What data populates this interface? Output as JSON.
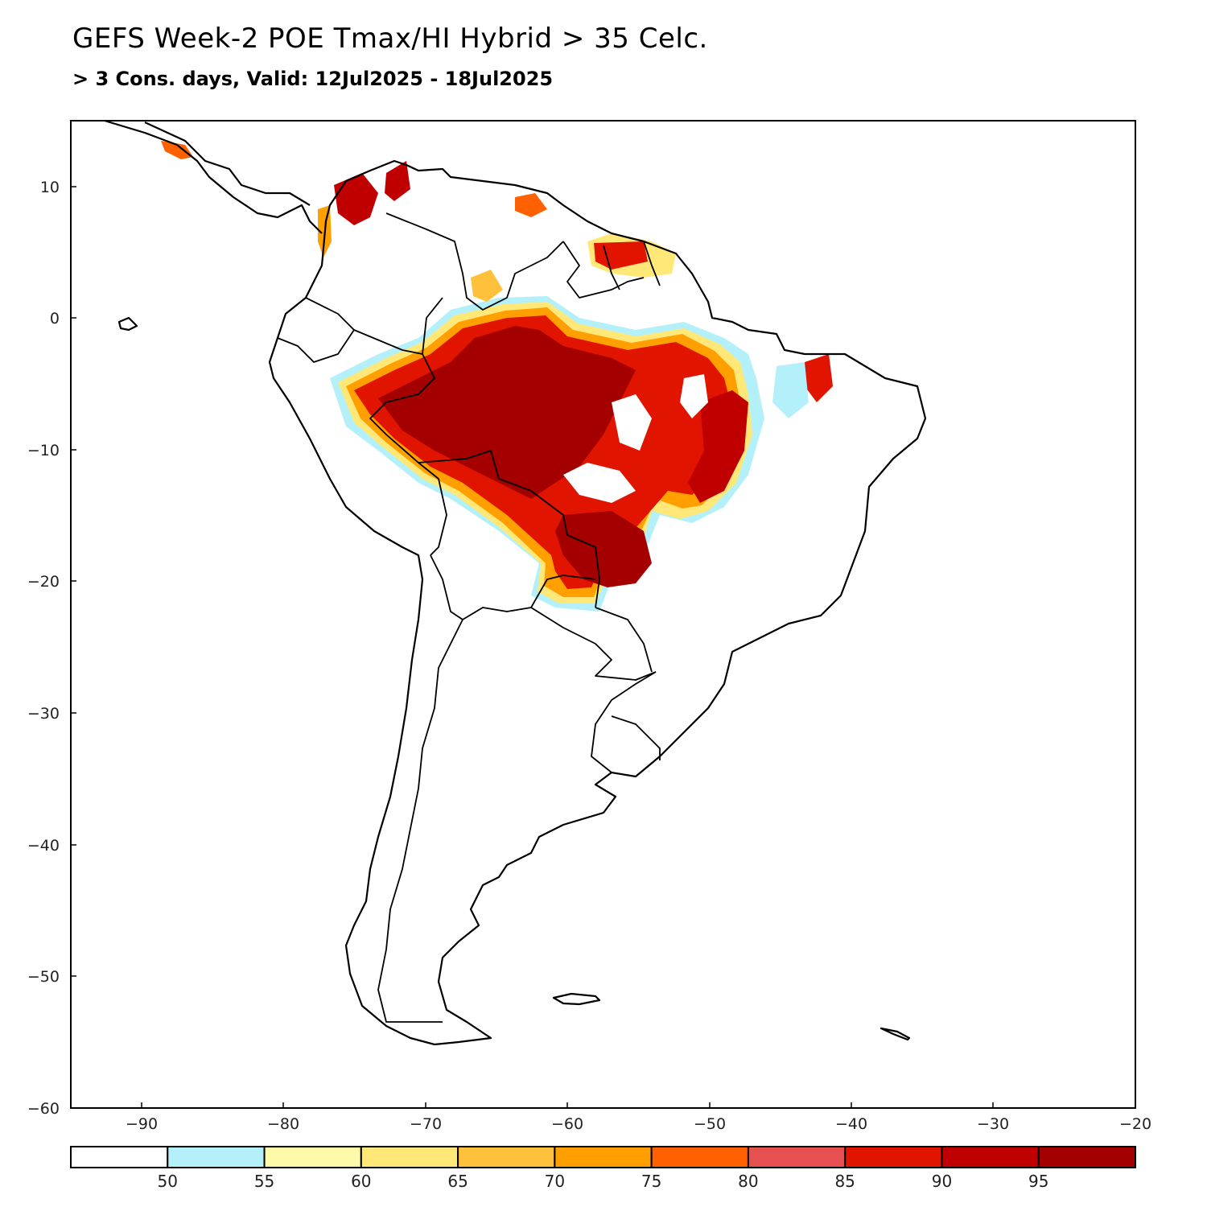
{
  "header": {
    "title": "GEFS Week-2 POE Tmax/HI Hybrid > 35 Celc.",
    "subtitle": "> 3 Cons. days, Valid: 12Jul2025 - 18Jul2025"
  },
  "axes": {
    "lon_ticks": [
      "−90",
      "−80",
      "−70",
      "−60",
      "−50",
      "−40",
      "−30",
      "−20"
    ],
    "lat_ticks": [
      "10",
      "0",
      "−10",
      "−20",
      "−30",
      "−40",
      "−50",
      "−60"
    ]
  },
  "colorbar": {
    "colors": [
      "#ffffff",
      "#b4f0fa",
      "#fffaaa",
      "#ffe878",
      "#ffc03c",
      "#ffa000",
      "#ff6000",
      "#e65050",
      "#e11400",
      "#c00000",
      "#a50000"
    ],
    "labels": [
      "50",
      "55",
      "60",
      "65",
      "70",
      "75",
      "80",
      "85",
      "90",
      "95"
    ]
  }
}
